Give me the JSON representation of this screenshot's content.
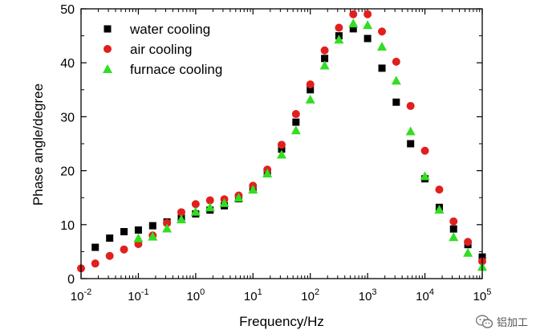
{
  "chart_data": {
    "type": "scatter",
    "title": "",
    "xlabel": "Frequency/Hz",
    "ylabel": "Phase angle/degree",
    "xscale": "log",
    "xlim_exp": [
      -2,
      5
    ],
    "ylim": [
      0,
      50
    ],
    "x_tick_labels": [
      {
        "base": "10",
        "exp": "-2"
      },
      {
        "base": "10",
        "exp": "-1"
      },
      {
        "base": "10",
        "exp": "0"
      },
      {
        "base": "10",
        "exp": "1"
      },
      {
        "base": "10",
        "exp": "2"
      },
      {
        "base": "10",
        "exp": "3"
      },
      {
        "base": "10",
        "exp": "4"
      },
      {
        "base": "10",
        "exp": "5"
      }
    ],
    "y_ticks": [
      0,
      10,
      20,
      30,
      40,
      50
    ],
    "legend_position": "top-left",
    "series": [
      {
        "name": "water cooling",
        "marker": "square",
        "color": "#000000",
        "points": [
          [
            0.0177,
            5.8
          ],
          [
            0.0316,
            7.5
          ],
          [
            0.0562,
            8.7
          ],
          [
            0.1,
            9.0
          ],
          [
            0.178,
            9.8
          ],
          [
            0.316,
            10.5
          ],
          [
            0.562,
            11.2
          ],
          [
            1.0,
            12.0
          ],
          [
            1.78,
            12.7
          ],
          [
            3.16,
            13.5
          ],
          [
            5.62,
            14.8
          ],
          [
            10.0,
            16.5
          ],
          [
            17.8,
            19.5
          ],
          [
            31.6,
            24.0
          ],
          [
            56.2,
            29.0
          ],
          [
            100,
            35.0
          ],
          [
            178,
            40.8
          ],
          [
            316,
            45.0
          ],
          [
            562,
            46.3
          ],
          [
            1000,
            44.5
          ],
          [
            1780,
            39.0
          ],
          [
            3160,
            32.7
          ],
          [
            5620,
            25.0
          ],
          [
            10000,
            18.5
          ],
          [
            17800,
            13.2
          ],
          [
            31600,
            9.2
          ],
          [
            56200,
            6.3
          ],
          [
            100000,
            3.8
          ],
          [
            100000,
            4.0
          ]
        ]
      },
      {
        "name": "air cooling",
        "marker": "circle",
        "color": "#e0201e",
        "points": [
          [
            0.01,
            1.9
          ],
          [
            0.0177,
            2.8
          ],
          [
            0.0316,
            4.2
          ],
          [
            0.0562,
            5.4
          ],
          [
            0.1,
            6.4
          ],
          [
            0.178,
            8.0
          ],
          [
            0.316,
            10.3
          ],
          [
            0.562,
            12.3
          ],
          [
            1.0,
            13.8
          ],
          [
            1.78,
            14.5
          ],
          [
            3.16,
            14.7
          ],
          [
            5.62,
            15.4
          ],
          [
            10.0,
            17.2
          ],
          [
            17.8,
            20.2
          ],
          [
            31.6,
            24.8
          ],
          [
            56.2,
            30.5
          ],
          [
            100,
            36.0
          ],
          [
            178,
            42.3
          ],
          [
            316,
            46.5
          ],
          [
            562,
            49.0
          ],
          [
            1000,
            49.0
          ],
          [
            1780,
            45.8
          ],
          [
            3160,
            40.2
          ],
          [
            5620,
            32.0
          ],
          [
            10000,
            23.7
          ],
          [
            17800,
            16.5
          ],
          [
            31600,
            10.6
          ],
          [
            56200,
            6.8
          ],
          [
            100000,
            3.2
          ]
        ]
      },
      {
        "name": "furnace cooling",
        "marker": "triangle",
        "color": "#33dd22",
        "points": [
          [
            0.1,
            7.5
          ],
          [
            0.178,
            7.8
          ],
          [
            0.316,
            9.3
          ],
          [
            0.562,
            11.0
          ],
          [
            1.0,
            12.4
          ],
          [
            1.78,
            13.2
          ],
          [
            3.16,
            14.0
          ],
          [
            5.62,
            15.0
          ],
          [
            10.0,
            16.5
          ],
          [
            17.8,
            19.5
          ],
          [
            31.6,
            23.0
          ],
          [
            56.2,
            27.5
          ],
          [
            100,
            33.2
          ],
          [
            178,
            39.5
          ],
          [
            316,
            44.3
          ],
          [
            562,
            47.3
          ],
          [
            1000,
            47.0
          ],
          [
            1780,
            43.0
          ],
          [
            3160,
            36.7
          ],
          [
            5620,
            27.3
          ],
          [
            10000,
            19.0
          ],
          [
            17800,
            12.8
          ],
          [
            31600,
            7.7
          ],
          [
            56200,
            4.8
          ],
          [
            100000,
            2.2
          ]
        ]
      }
    ]
  },
  "watermark": {
    "text": "铝加工",
    "icon": "wechat-icon"
  }
}
